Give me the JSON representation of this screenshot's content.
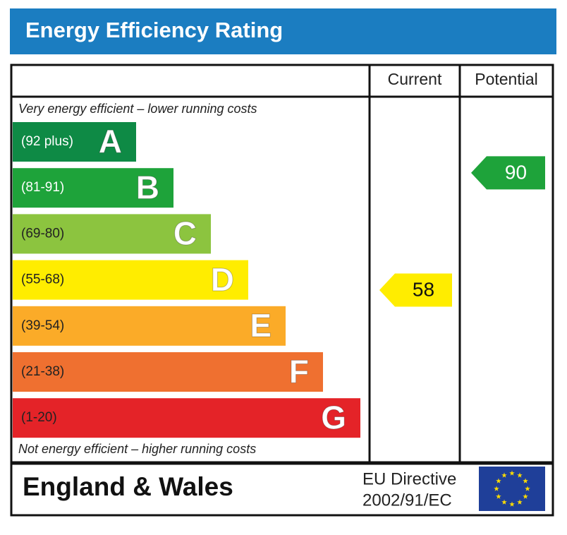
{
  "title": "Energy Efficiency Rating",
  "headers": {
    "current": "Current",
    "potential": "Potential"
  },
  "top_note": "Very energy efficient – lower running costs",
  "bottom_note": "Not energy efficient – higher running costs",
  "bands": [
    {
      "range": "(92 plus)",
      "letter": "A",
      "color": "#0e8a45",
      "text_color": "#ffffff"
    },
    {
      "range": "(81-91)",
      "letter": "B",
      "color": "#1ea33a",
      "text_color": "#ffffff"
    },
    {
      "range": "(69-80)",
      "letter": "C",
      "color": "#8cc43f",
      "text_color": "#222222"
    },
    {
      "range": "(55-68)",
      "letter": "D",
      "color": "#ffed00",
      "text_color": "#222222"
    },
    {
      "range": "(39-54)",
      "letter": "E",
      "color": "#fbab28",
      "text_color": "#222222"
    },
    {
      "range": "(21-38)",
      "letter": "F",
      "color": "#ef7030",
      "text_color": "#222222"
    },
    {
      "range": "(1-20)",
      "letter": "G",
      "color": "#e42328",
      "text_color": "#222222"
    }
  ],
  "current": {
    "value": 58,
    "color": "#ffed00",
    "text_color": "#111111"
  },
  "potential": {
    "value": 90,
    "color": "#1ea33a",
    "text_color": "#ffffff"
  },
  "footer": {
    "region": "England & Wales",
    "directive_line1": "EU Directive",
    "directive_line2": "2002/91/EC"
  }
}
